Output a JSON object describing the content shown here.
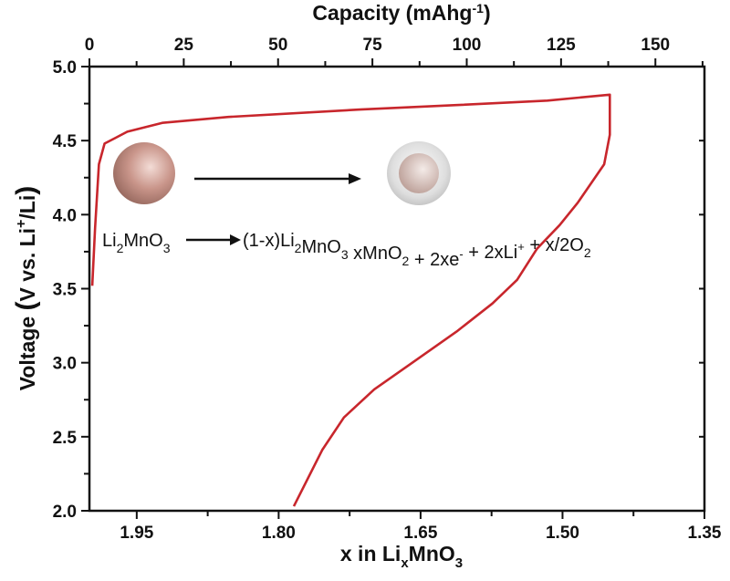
{
  "chart_data": {
    "type": "line",
    "title": "",
    "xlabel": "x in LixMnO3",
    "xlabel_parts": {
      "main": "x in Li",
      "sub": "x",
      "tail": "MnO",
      "sub2": "3"
    },
    "x2label": "Capacity (mAhg-1)",
    "x2label_parts": {
      "main": "Capacity (mAhg",
      "sup": "-1",
      "tail": ")"
    },
    "ylabel": "Voltage (V vs. Li+/Li)",
    "ylabel_parts": {
      "main": "Voltage ",
      "paren_open": "(",
      "body": "V vs. Li",
      "sup": "+",
      "tail": "/Li",
      "paren_close": ")"
    },
    "xlim": [
      2.0,
      1.35
    ],
    "x2lim": [
      0,
      163
    ],
    "ylim": [
      2.0,
      5.0
    ],
    "xticks": [
      "1.95",
      "1.80",
      "1.65",
      "1.50",
      "1.35"
    ],
    "x2ticks": [
      "0",
      "25",
      "50",
      "75",
      "100",
      "125",
      "150"
    ],
    "yticks": [
      "2.0",
      "2.5",
      "3.0",
      "3.5",
      "4.0",
      "4.5",
      "5.0"
    ],
    "grid": false,
    "line_color": "#c8262c",
    "series": [
      {
        "x": [
          1.997,
          1.994,
          1.99,
          1.984,
          1.96,
          1.923,
          1.853,
          1.714,
          1.612,
          1.516,
          1.45,
          1.45,
          1.456,
          1.484,
          1.503,
          1.527,
          1.548,
          1.574,
          1.612,
          1.661,
          1.699,
          1.731,
          1.754,
          1.784
        ],
        "y": [
          3.52,
          3.91,
          4.34,
          4.48,
          4.56,
          4.62,
          4.66,
          4.71,
          4.74,
          4.77,
          4.81,
          4.54,
          4.34,
          4.08,
          3.93,
          3.77,
          3.56,
          3.4,
          3.21,
          2.99,
          2.82,
          2.63,
          2.41,
          2.03
        ]
      }
    ],
    "annotations": {
      "reactant": {
        "main": "Li",
        "sub1": "2",
        "mid": "MnO",
        "sub2": "3"
      },
      "product": [
        {
          "t": "(1-x)Li",
          "s": ""
        },
        {
          "t": "2",
          "s": "sub"
        },
        {
          "t": "MnO",
          "s": ""
        },
        {
          "t": "3",
          "s": "sub"
        },
        {
          "t": " xMnO",
          "s": ""
        },
        {
          "t": "2",
          "s": "sub"
        },
        {
          "t": " + 2xe",
          "s": ""
        },
        {
          "t": "-",
          "s": "sup"
        },
        {
          "t": " + 2xLi",
          "s": ""
        },
        {
          "t": "+",
          "s": "sup"
        },
        {
          "t": " + x/2O",
          "s": ""
        },
        {
          "t": "2",
          "s": "sub"
        }
      ],
      "particle_color": "#c9958a",
      "shell_color": "#dcdcdc"
    }
  }
}
